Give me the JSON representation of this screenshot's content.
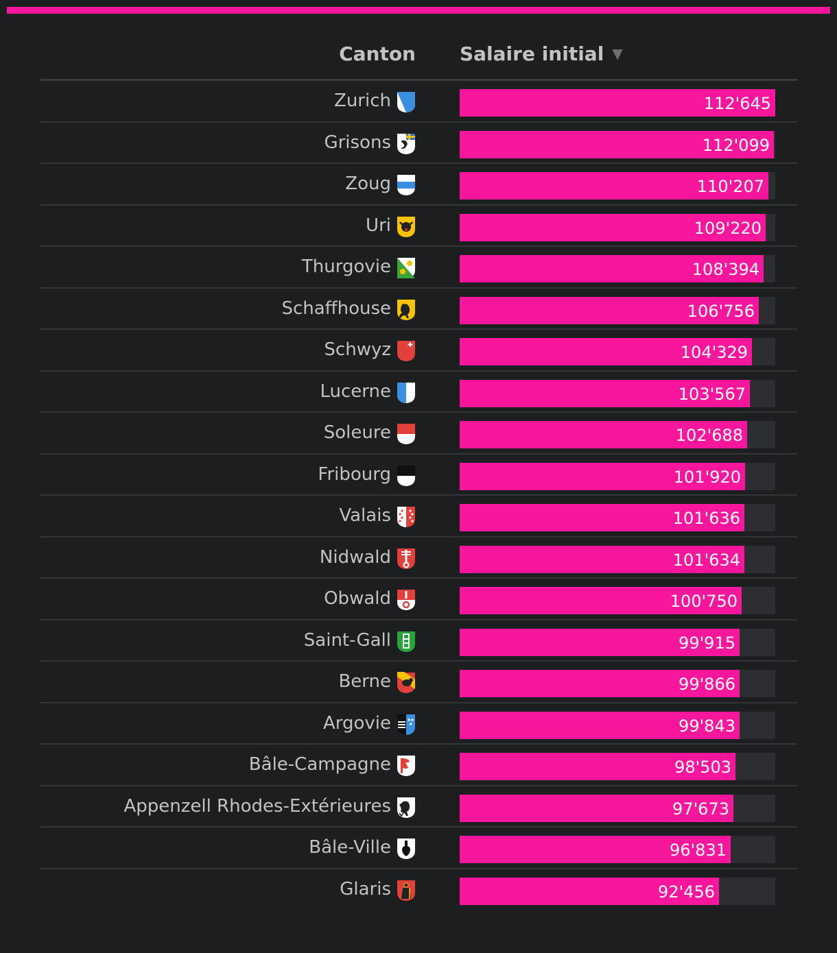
{
  "colors": {
    "accent": "#f7169c",
    "background": "#1d1e20",
    "track": "#2d2e31",
    "text": "#c2c2c2"
  },
  "header": {
    "canton_label": "Canton",
    "salary_label": "Salaire initial",
    "sort_icon": "triangle-down-icon",
    "sort_glyph": "▼"
  },
  "chart_data": {
    "type": "bar",
    "orientation": "horizontal",
    "xlim": [
      0,
      112645
    ],
    "categories": [
      "Zurich",
      "Grisons",
      "Zoug",
      "Uri",
      "Thurgovie",
      "Schaffhouse",
      "Schwyz",
      "Lucerne",
      "Soleure",
      "Fribourg",
      "Valais",
      "Nidwald",
      "Obwald",
      "Saint-Gall",
      "Berne",
      "Argovie",
      "Bâle-Campagne",
      "Appenzell Rhodes-Extérieures",
      "Bâle-Ville",
      "Glaris"
    ],
    "values": [
      112645,
      112099,
      110207,
      109220,
      108394,
      106756,
      104329,
      103567,
      102688,
      101920,
      101636,
      101634,
      100750,
      99915,
      99866,
      99843,
      98503,
      97673,
      96831,
      92456
    ],
    "value_labels": [
      "112'645",
      "112'099",
      "110'207",
      "109'220",
      "108'394",
      "106'756",
      "104'329",
      "103'567",
      "102'688",
      "101'920",
      "101'636",
      "101'634",
      "100'750",
      "99'915",
      "99'866",
      "99'843",
      "98'503",
      "97'673",
      "96'831",
      "92'456"
    ]
  },
  "rows": [
    {
      "canton": "Zurich",
      "crest": "zurich-crest-icon",
      "value_label": "112'645"
    },
    {
      "canton": "Grisons",
      "crest": "grisons-crest-icon",
      "value_label": "112'099"
    },
    {
      "canton": "Zoug",
      "crest": "zoug-crest-icon",
      "value_label": "110'207"
    },
    {
      "canton": "Uri",
      "crest": "uri-crest-icon",
      "value_label": "109'220"
    },
    {
      "canton": "Thurgovie",
      "crest": "thurgovie-crest-icon",
      "value_label": "108'394"
    },
    {
      "canton": "Schaffhouse",
      "crest": "schaffhouse-crest-icon",
      "value_label": "106'756"
    },
    {
      "canton": "Schwyz",
      "crest": "schwyz-crest-icon",
      "value_label": "104'329"
    },
    {
      "canton": "Lucerne",
      "crest": "lucerne-crest-icon",
      "value_label": "103'567"
    },
    {
      "canton": "Soleure",
      "crest": "soleure-crest-icon",
      "value_label": "102'688"
    },
    {
      "canton": "Fribourg",
      "crest": "fribourg-crest-icon",
      "value_label": "101'920"
    },
    {
      "canton": "Valais",
      "crest": "valais-crest-icon",
      "value_label": "101'636"
    },
    {
      "canton": "Nidwald",
      "crest": "nidwald-crest-icon",
      "value_label": "101'634"
    },
    {
      "canton": "Obwald",
      "crest": "obwald-crest-icon",
      "value_label": "100'750"
    },
    {
      "canton": "Saint-Gall",
      "crest": "saint-gall-crest-icon",
      "value_label": "99'915"
    },
    {
      "canton": "Berne",
      "crest": "berne-crest-icon",
      "value_label": "99'866"
    },
    {
      "canton": "Argovie",
      "crest": "argovie-crest-icon",
      "value_label": "99'843"
    },
    {
      "canton": "Bâle-Campagne",
      "crest": "bale-campagne-crest-icon",
      "value_label": "98'503"
    },
    {
      "canton": "Appenzell Rhodes-Extérieures",
      "crest": "appenzell-rhodes-exterieures-crest-icon",
      "value_label": "97'673"
    },
    {
      "canton": "Bâle-Ville",
      "crest": "bale-ville-crest-icon",
      "value_label": "96'831"
    },
    {
      "canton": "Glaris",
      "crest": "glaris-crest-icon",
      "value_label": "92'456"
    }
  ]
}
